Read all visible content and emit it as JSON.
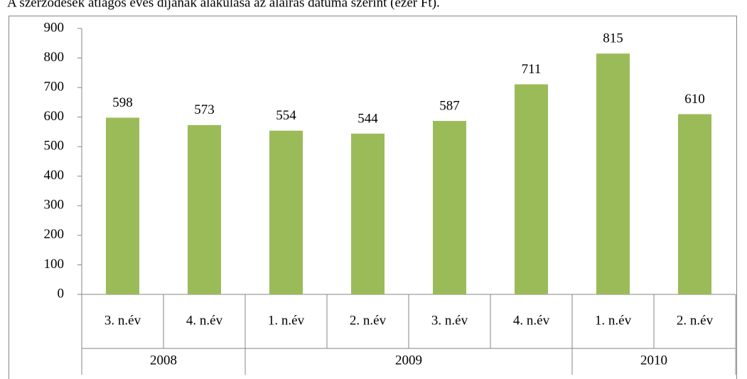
{
  "chart_data": {
    "type": "bar",
    "title": "A szerződések átlagos éves díjának alakulása az aláírás dátuma szerint (ezer Ft).",
    "groups": [
      {
        "name": "2008",
        "categories": [
          "3. n.év",
          "4. n.év"
        ]
      },
      {
        "name": "2009",
        "categories": [
          "1. n.év",
          "2. n.év",
          "3. n.év",
          "4. n.év"
        ]
      },
      {
        "name": "2010",
        "categories": [
          "1. n.év",
          "2. n.év"
        ]
      }
    ],
    "values": [
      598,
      573,
      554,
      544,
      587,
      711,
      815,
      610
    ],
    "color": "#9bbb59",
    "ylim": [
      0,
      900
    ],
    "yticks": [
      0,
      100,
      200,
      300,
      400,
      500,
      600,
      700,
      800,
      900
    ],
    "grid": false
  }
}
